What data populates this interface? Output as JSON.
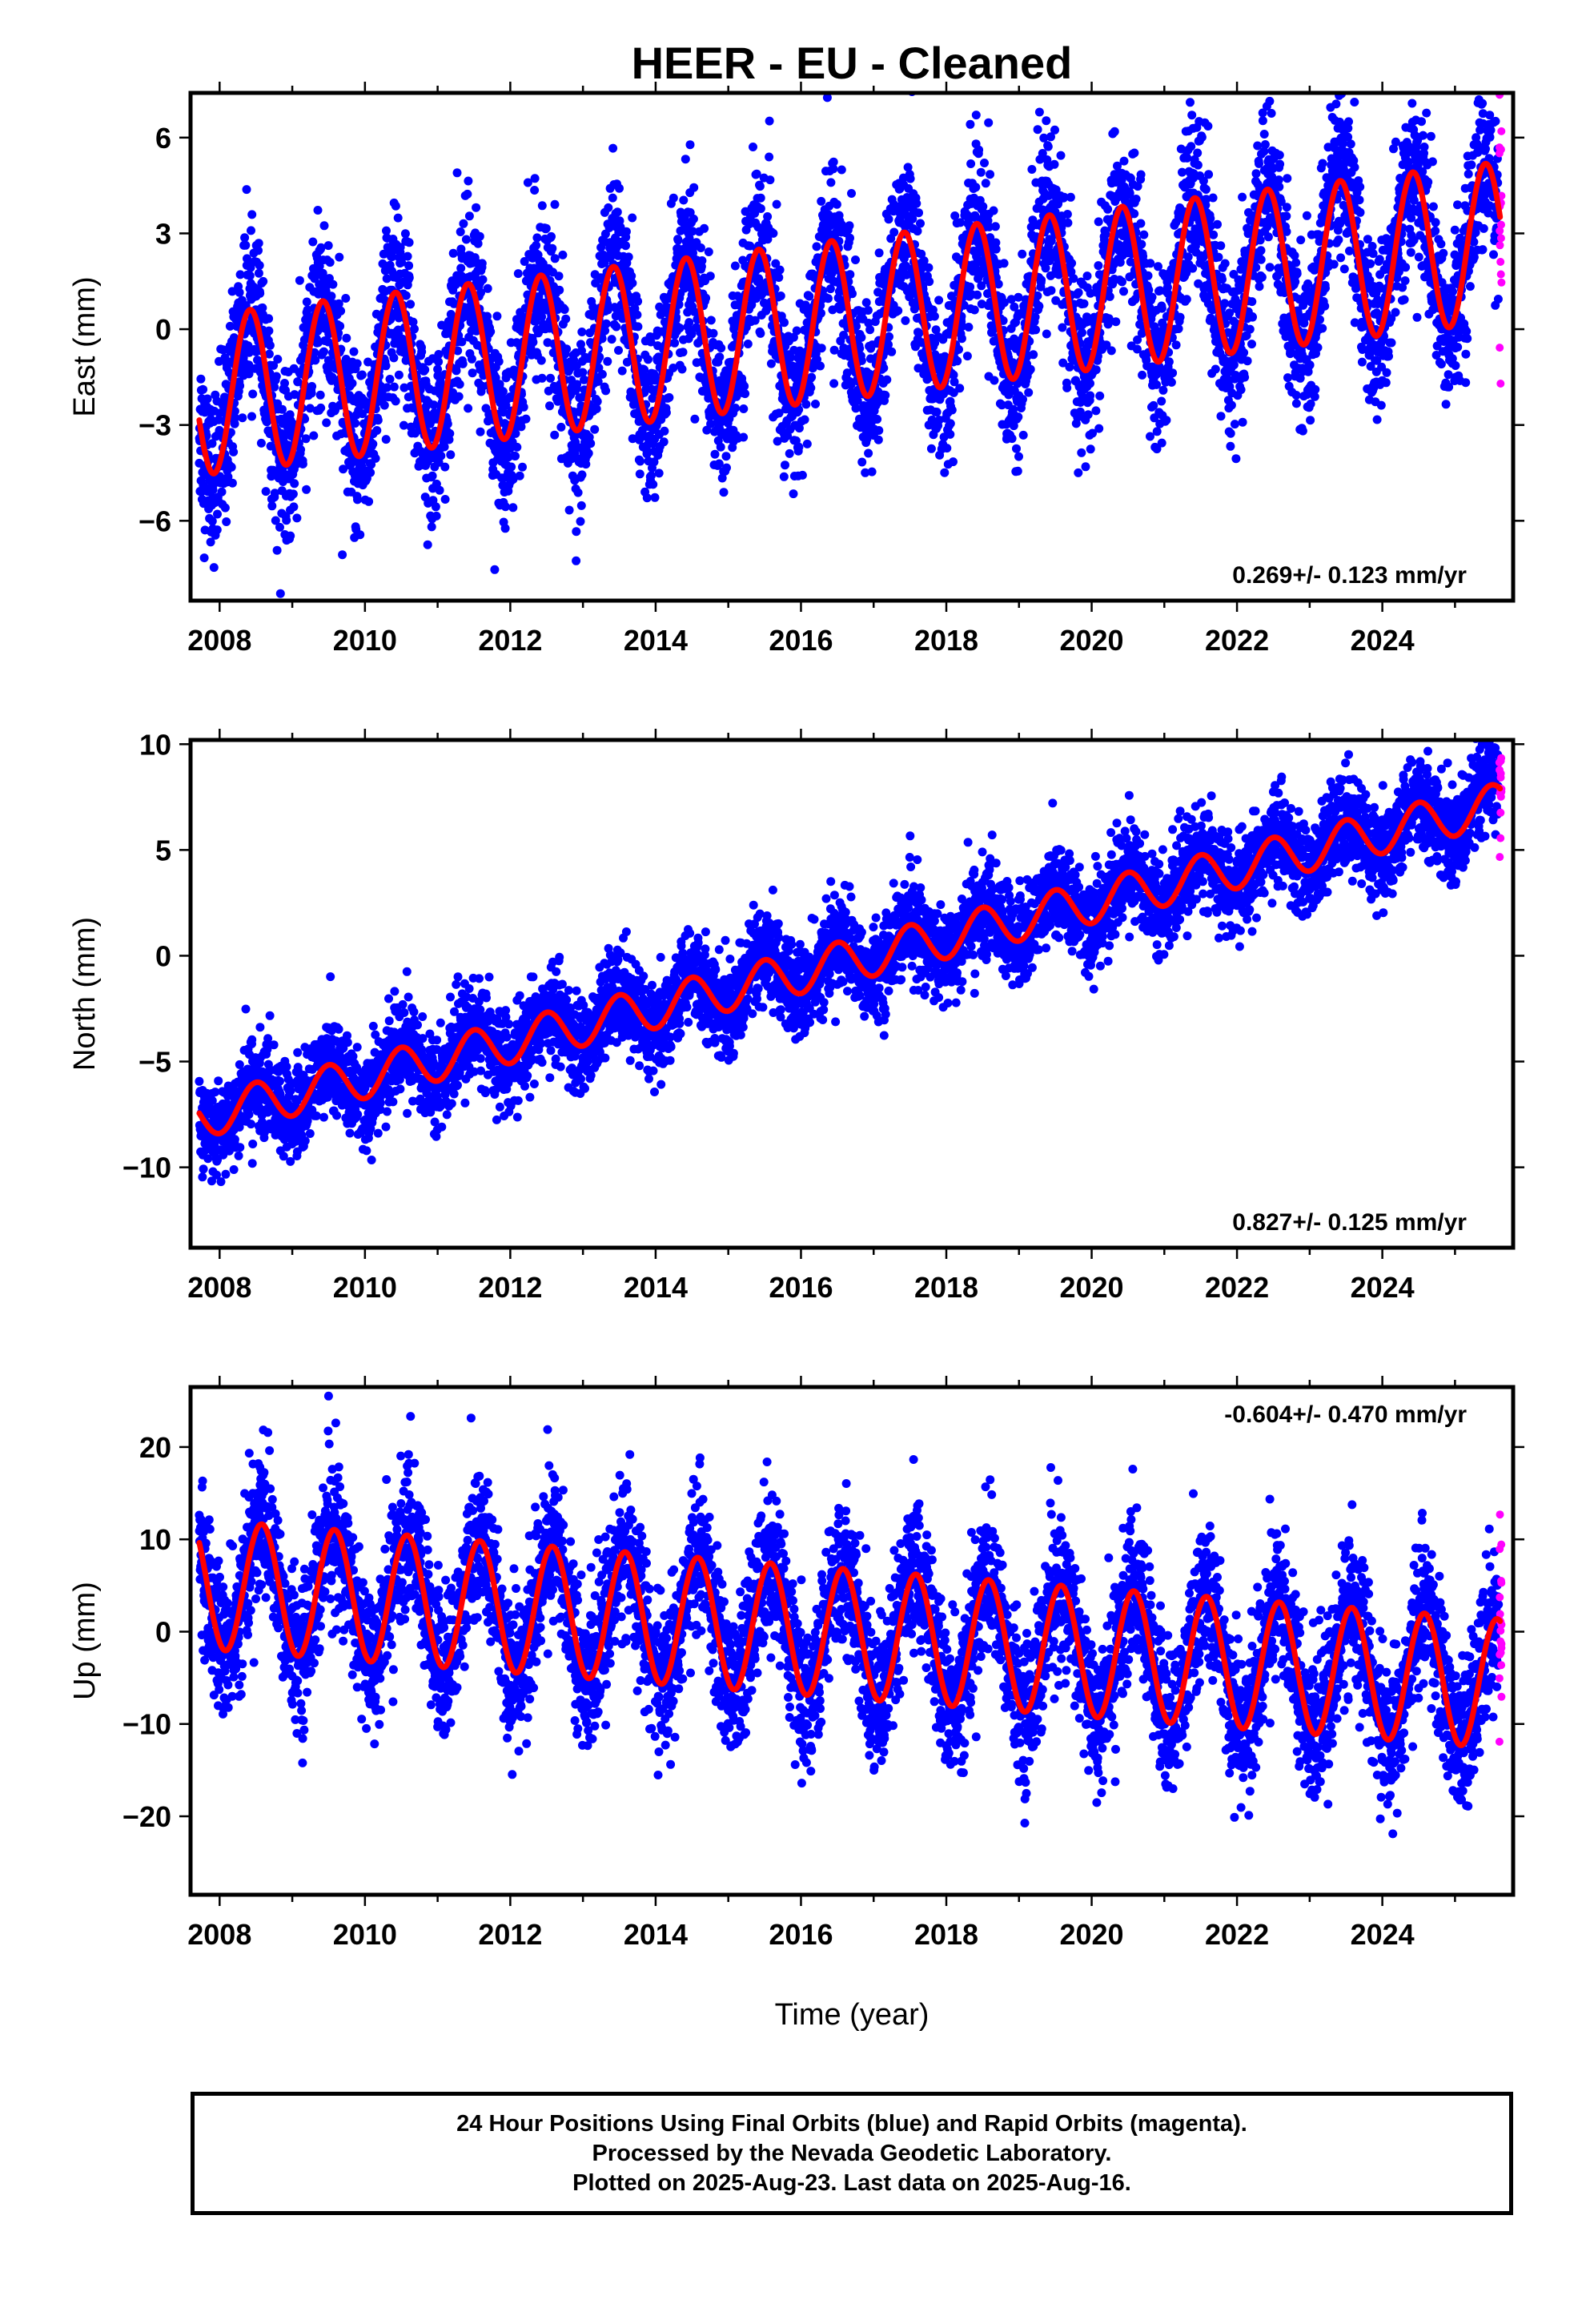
{
  "chart_data": {
    "type": "scatter",
    "title": "HEER  - EU - Cleaned",
    "xlabel": "Time (year)",
    "x_ticks": [
      2008,
      2010,
      2012,
      2014,
      2016,
      2018,
      2020,
      2022,
      2024
    ],
    "xlim": [
      2007.6,
      2025.8
    ],
    "data_span": [
      2007.72,
      2025.62
    ],
    "series_colors": {
      "final_orbits": "#0000ff",
      "rapid_orbits": "#ff00ff",
      "model_fit": "#ff0000"
    },
    "panels": [
      {
        "id": "east",
        "ylabel": "East (mm)",
        "ylim": [
          -8.5,
          7.4
        ],
        "y_ticks": [
          6,
          3,
          0,
          -3,
          -6
        ],
        "rate_text": "0.269+/- 0.123 mm/yr",
        "rate_position": "bottom-right",
        "trend": {
          "intercept_2008": -2.0,
          "rate": 0.269
        },
        "annual_amplitude": 2.5,
        "annual_peak_phase": 0.42,
        "scatter_sigma": 1.3
      },
      {
        "id": "north",
        "ylabel": "North (mm)",
        "ylim": [
          -13.8,
          10.2
        ],
        "y_ticks": [
          10,
          5,
          0,
          -5,
          -10
        ],
        "rate_text": "0.827+/- 0.125 mm/yr",
        "rate_position": "bottom-right",
        "trend": {
          "intercept_2008": -7.4,
          "rate": 0.827
        },
        "annual_amplitude": 1.0,
        "annual_peak_phase": 0.5,
        "scatter_sigma": 1.1
      },
      {
        "id": "up",
        "ylabel": "Up (mm)",
        "ylim": [
          -28.5,
          26.5
        ],
        "y_ticks": [
          20,
          10,
          0,
          -10,
          -20
        ],
        "rate_text": "-0.604+/- 0.470 mm/yr",
        "rate_position": "top-right",
        "trend": {
          "intercept_2008": 5.0,
          "rate": -0.604
        },
        "annual_amplitude": 7.0,
        "annual_peak_phase": 0.58,
        "scatter_sigma": 4.0
      }
    ]
  },
  "footer": {
    "line1": "24 Hour Positions Using Final Orbits (blue) and Rapid Orbits (magenta).",
    "line2": "Processed by the Nevada Geodetic Laboratory.",
    "line3": "Plotted on 2025-Aug-23. Last data on 2025-Aug-16."
  }
}
